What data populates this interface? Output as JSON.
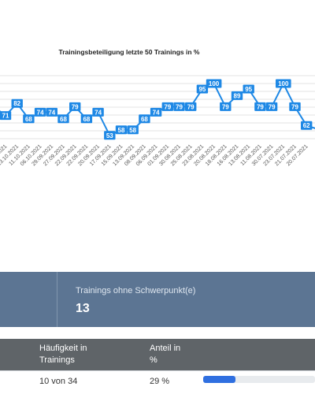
{
  "chart_data": {
    "type": "line",
    "title": "Trainingsbeteiligung letzte 50 Trainings in %",
    "visible_points": [
      {
        "label": "18.10.2021",
        "value": 71
      },
      {
        "label": "13.10.2021",
        "value": 82
      },
      {
        "label": "11.10.2021",
        "value": 68
      },
      {
        "label": "06.10.2021",
        "value": 74
      },
      {
        "label": "29.09.2021",
        "value": 74
      },
      {
        "label": "27.09.2021",
        "value": 68
      },
      {
        "label": "22.09.2021",
        "value": 79
      },
      {
        "label": "22.09.2021",
        "value": 68
      },
      {
        "label": "20.09.2021",
        "value": 74
      },
      {
        "label": "17.09.2021",
        "value": 53
      },
      {
        "label": "15.09.2021",
        "value": 58
      },
      {
        "label": "13.09.2021",
        "value": 58
      },
      {
        "label": "08.09.2021",
        "value": 68
      },
      {
        "label": "06.09.2021",
        "value": 74
      },
      {
        "label": "01.09.2021",
        "value": 79
      },
      {
        "label": "30.08.2021",
        "value": 79
      },
      {
        "label": "25.08.2021",
        "value": 79
      },
      {
        "label": "23.08.2021",
        "value": 95
      },
      {
        "label": "20.08.2021",
        "value": 100
      },
      {
        "label": "18.08.2021",
        "value": 79
      },
      {
        "label": "16.08.2021",
        "value": 89
      },
      {
        "label": "13.08.2021",
        "value": 95
      },
      {
        "label": "11.08.2021",
        "value": 79
      },
      {
        "label": "30.07.2021",
        "value": 79
      },
      {
        "label": "23.07.2021",
        "value": 100
      },
      {
        "label": "21.07.2021",
        "value": 79
      },
      {
        "label": "20.07.2021",
        "value": 62
      }
    ],
    "grid": true
  },
  "stats": {
    "label": "Trainings ohne Schwerpunkt(e)",
    "value": "13"
  },
  "table": {
    "col_frequency_line1": "Häufigkeit in",
    "col_frequency_line2": "Trainings",
    "col_share_line1": "Anteil in",
    "col_share_line2": "%",
    "row": {
      "frequency": "10 von 34",
      "share": "29 %",
      "progress_fraction": 0.29
    }
  },
  "colors": {
    "line": "#1e88e5",
    "label_box": "#1e88e5",
    "band": "#5c7593",
    "header": "#5f6468",
    "progress": "#2f6fe0"
  }
}
